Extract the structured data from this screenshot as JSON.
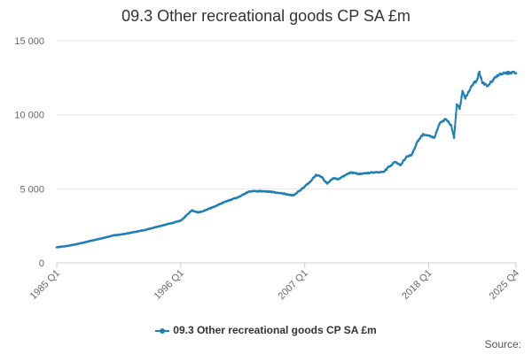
{
  "chart_data": {
    "type": "line",
    "title": "09.3 Other recreational goods CP SA £m",
    "xlabel": "",
    "ylabel": "",
    "ylim": [
      0,
      15000
    ],
    "yticks": [
      0,
      5000,
      10000,
      15000
    ],
    "ytick_labels": [
      "0",
      "5 000",
      "10 000",
      "15 000"
    ],
    "xticks": [
      "1985 Q1",
      "1996 Q1",
      "2007 Q1",
      "2018 Q1",
      "2025 Q4"
    ],
    "series": [
      {
        "name": "09.3 Other recreational goods CP SA £m",
        "color": "#1f7fb6",
        "points": [
          [
            "1985 Q1",
            1050
          ],
          [
            "1986 Q1",
            1150
          ],
          [
            "1987 Q1",
            1300
          ],
          [
            "1988 Q1",
            1480
          ],
          [
            "1989 Q1",
            1650
          ],
          [
            "1990 Q1",
            1850
          ],
          [
            "1991 Q1",
            1950
          ],
          [
            "1992 Q1",
            2100
          ],
          [
            "1993 Q1",
            2250
          ],
          [
            "1994 Q1",
            2450
          ],
          [
            "1995 Q1",
            2650
          ],
          [
            "1996 Q1",
            2850
          ],
          [
            "1996 Q3",
            3200
          ],
          [
            "1997 Q1",
            3550
          ],
          [
            "1997 Q3",
            3400
          ],
          [
            "1998 Q1",
            3500
          ],
          [
            "1999 Q1",
            3800
          ],
          [
            "2000 Q1",
            4150
          ],
          [
            "2001 Q1",
            4400
          ],
          [
            "2002 Q1",
            4800
          ],
          [
            "2003 Q1",
            4850
          ],
          [
            "2004 Q1",
            4800
          ],
          [
            "2005 Q1",
            4700
          ],
          [
            "2006 Q1",
            4550
          ],
          [
            "2006 Q3",
            4850
          ],
          [
            "2007 Q1",
            5150
          ],
          [
            "2007 Q3",
            5500
          ],
          [
            "2008 Q1",
            5950
          ],
          [
            "2008 Q3",
            5800
          ],
          [
            "2009 Q1",
            5350
          ],
          [
            "2009 Q3",
            5700
          ],
          [
            "2010 Q1",
            5650
          ],
          [
            "2011 Q1",
            6100
          ],
          [
            "2012 Q1",
            6000
          ],
          [
            "2013 Q1",
            6100
          ],
          [
            "2014 Q1",
            6150
          ],
          [
            "2014 Q3",
            6500
          ],
          [
            "2015 Q1",
            6800
          ],
          [
            "2015 Q3",
            6600
          ],
          [
            "2016 Q1",
            7150
          ],
          [
            "2016 Q3",
            7300
          ],
          [
            "2017 Q1",
            8200
          ],
          [
            "2017 Q3",
            8700
          ],
          [
            "2018 Q1",
            8600
          ],
          [
            "2018 Q3",
            8450
          ],
          [
            "2019 Q1",
            9450
          ],
          [
            "2019 Q3",
            9700
          ],
          [
            "2020 Q1",
            9300
          ],
          [
            "2020 Q2",
            8450
          ],
          [
            "2020 Q3",
            10700
          ],
          [
            "2020 Q4",
            10400
          ],
          [
            "2021 Q1",
            11600
          ],
          [
            "2021 Q2",
            11100
          ],
          [
            "2021 Q4",
            11900
          ],
          [
            "2022 Q2",
            12300
          ],
          [
            "2022 Q3",
            12900
          ],
          [
            "2022 Q4",
            12150
          ],
          [
            "2023 Q2",
            11950
          ],
          [
            "2023 Q4",
            12400
          ],
          [
            "2024 Q2",
            12700
          ],
          [
            "2024 Q4",
            12800
          ],
          [
            "2025 Q2",
            12850
          ],
          [
            "2025 Q4",
            12800
          ]
        ]
      }
    ],
    "legend_position": "bottom"
  },
  "legend": {
    "label": "09.3 Other recreational goods CP SA £m"
  },
  "source": {
    "label": "Source:"
  }
}
